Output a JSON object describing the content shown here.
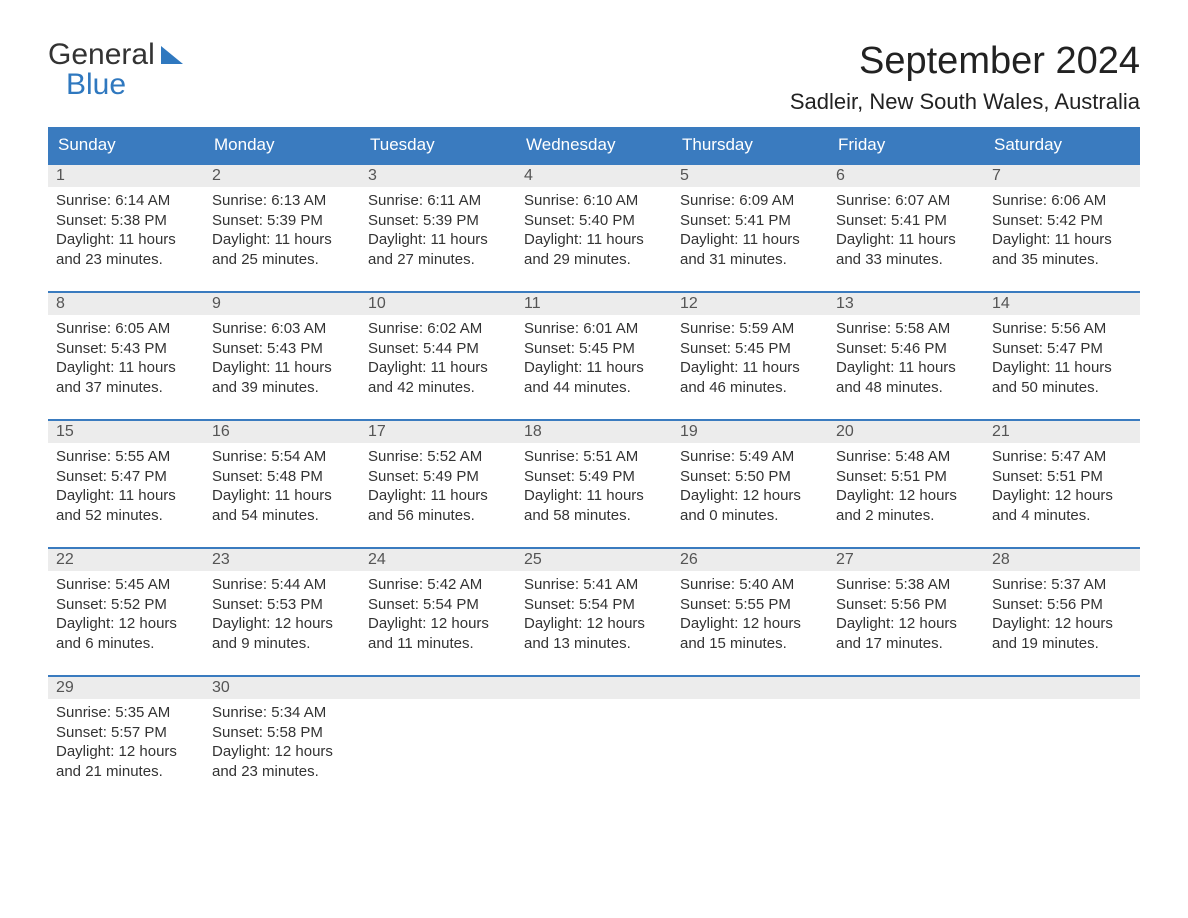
{
  "logo": {
    "line1": "General",
    "line2": "Blue"
  },
  "title": "September 2024",
  "location": "Sadleir, New South Wales, Australia",
  "colors": {
    "header_bg": "#3a7bbf",
    "header_text": "#ffffff",
    "row_accent": "#3a7bbf",
    "num_bg": "#ececec",
    "text": "#333333",
    "page_bg": "#ffffff"
  },
  "typography": {
    "title_fontsize": 38,
    "location_fontsize": 22,
    "dow_fontsize": 17,
    "daynum_fontsize": 16,
    "body_fontsize": 15
  },
  "layout": {
    "columns": 7,
    "rows": 5
  },
  "days_of_week": [
    "Sunday",
    "Monday",
    "Tuesday",
    "Wednesday",
    "Thursday",
    "Friday",
    "Saturday"
  ],
  "weeks": [
    [
      {
        "num": "1",
        "sunrise": "Sunrise: 6:14 AM",
        "sunset": "Sunset: 5:38 PM",
        "dl1": "Daylight: 11 hours",
        "dl2": "and 23 minutes."
      },
      {
        "num": "2",
        "sunrise": "Sunrise: 6:13 AM",
        "sunset": "Sunset: 5:39 PM",
        "dl1": "Daylight: 11 hours",
        "dl2": "and 25 minutes."
      },
      {
        "num": "3",
        "sunrise": "Sunrise: 6:11 AM",
        "sunset": "Sunset: 5:39 PM",
        "dl1": "Daylight: 11 hours",
        "dl2": "and 27 minutes."
      },
      {
        "num": "4",
        "sunrise": "Sunrise: 6:10 AM",
        "sunset": "Sunset: 5:40 PM",
        "dl1": "Daylight: 11 hours",
        "dl2": "and 29 minutes."
      },
      {
        "num": "5",
        "sunrise": "Sunrise: 6:09 AM",
        "sunset": "Sunset: 5:41 PM",
        "dl1": "Daylight: 11 hours",
        "dl2": "and 31 minutes."
      },
      {
        "num": "6",
        "sunrise": "Sunrise: 6:07 AM",
        "sunset": "Sunset: 5:41 PM",
        "dl1": "Daylight: 11 hours",
        "dl2": "and 33 minutes."
      },
      {
        "num": "7",
        "sunrise": "Sunrise: 6:06 AM",
        "sunset": "Sunset: 5:42 PM",
        "dl1": "Daylight: 11 hours",
        "dl2": "and 35 minutes."
      }
    ],
    [
      {
        "num": "8",
        "sunrise": "Sunrise: 6:05 AM",
        "sunset": "Sunset: 5:43 PM",
        "dl1": "Daylight: 11 hours",
        "dl2": "and 37 minutes."
      },
      {
        "num": "9",
        "sunrise": "Sunrise: 6:03 AM",
        "sunset": "Sunset: 5:43 PM",
        "dl1": "Daylight: 11 hours",
        "dl2": "and 39 minutes."
      },
      {
        "num": "10",
        "sunrise": "Sunrise: 6:02 AM",
        "sunset": "Sunset: 5:44 PM",
        "dl1": "Daylight: 11 hours",
        "dl2": "and 42 minutes."
      },
      {
        "num": "11",
        "sunrise": "Sunrise: 6:01 AM",
        "sunset": "Sunset: 5:45 PM",
        "dl1": "Daylight: 11 hours",
        "dl2": "and 44 minutes."
      },
      {
        "num": "12",
        "sunrise": "Sunrise: 5:59 AM",
        "sunset": "Sunset: 5:45 PM",
        "dl1": "Daylight: 11 hours",
        "dl2": "and 46 minutes."
      },
      {
        "num": "13",
        "sunrise": "Sunrise: 5:58 AM",
        "sunset": "Sunset: 5:46 PM",
        "dl1": "Daylight: 11 hours",
        "dl2": "and 48 minutes."
      },
      {
        "num": "14",
        "sunrise": "Sunrise: 5:56 AM",
        "sunset": "Sunset: 5:47 PM",
        "dl1": "Daylight: 11 hours",
        "dl2": "and 50 minutes."
      }
    ],
    [
      {
        "num": "15",
        "sunrise": "Sunrise: 5:55 AM",
        "sunset": "Sunset: 5:47 PM",
        "dl1": "Daylight: 11 hours",
        "dl2": "and 52 minutes."
      },
      {
        "num": "16",
        "sunrise": "Sunrise: 5:54 AM",
        "sunset": "Sunset: 5:48 PM",
        "dl1": "Daylight: 11 hours",
        "dl2": "and 54 minutes."
      },
      {
        "num": "17",
        "sunrise": "Sunrise: 5:52 AM",
        "sunset": "Sunset: 5:49 PM",
        "dl1": "Daylight: 11 hours",
        "dl2": "and 56 minutes."
      },
      {
        "num": "18",
        "sunrise": "Sunrise: 5:51 AM",
        "sunset": "Sunset: 5:49 PM",
        "dl1": "Daylight: 11 hours",
        "dl2": "and 58 minutes."
      },
      {
        "num": "19",
        "sunrise": "Sunrise: 5:49 AM",
        "sunset": "Sunset: 5:50 PM",
        "dl1": "Daylight: 12 hours",
        "dl2": "and 0 minutes."
      },
      {
        "num": "20",
        "sunrise": "Sunrise: 5:48 AM",
        "sunset": "Sunset: 5:51 PM",
        "dl1": "Daylight: 12 hours",
        "dl2": "and 2 minutes."
      },
      {
        "num": "21",
        "sunrise": "Sunrise: 5:47 AM",
        "sunset": "Sunset: 5:51 PM",
        "dl1": "Daylight: 12 hours",
        "dl2": "and 4 minutes."
      }
    ],
    [
      {
        "num": "22",
        "sunrise": "Sunrise: 5:45 AM",
        "sunset": "Sunset: 5:52 PM",
        "dl1": "Daylight: 12 hours",
        "dl2": "and 6 minutes."
      },
      {
        "num": "23",
        "sunrise": "Sunrise: 5:44 AM",
        "sunset": "Sunset: 5:53 PM",
        "dl1": "Daylight: 12 hours",
        "dl2": "and 9 minutes."
      },
      {
        "num": "24",
        "sunrise": "Sunrise: 5:42 AM",
        "sunset": "Sunset: 5:54 PM",
        "dl1": "Daylight: 12 hours",
        "dl2": "and 11 minutes."
      },
      {
        "num": "25",
        "sunrise": "Sunrise: 5:41 AM",
        "sunset": "Sunset: 5:54 PM",
        "dl1": "Daylight: 12 hours",
        "dl2": "and 13 minutes."
      },
      {
        "num": "26",
        "sunrise": "Sunrise: 5:40 AM",
        "sunset": "Sunset: 5:55 PM",
        "dl1": "Daylight: 12 hours",
        "dl2": "and 15 minutes."
      },
      {
        "num": "27",
        "sunrise": "Sunrise: 5:38 AM",
        "sunset": "Sunset: 5:56 PM",
        "dl1": "Daylight: 12 hours",
        "dl2": "and 17 minutes."
      },
      {
        "num": "28",
        "sunrise": "Sunrise: 5:37 AM",
        "sunset": "Sunset: 5:56 PM",
        "dl1": "Daylight: 12 hours",
        "dl2": "and 19 minutes."
      }
    ],
    [
      {
        "num": "29",
        "sunrise": "Sunrise: 5:35 AM",
        "sunset": "Sunset: 5:57 PM",
        "dl1": "Daylight: 12 hours",
        "dl2": "and 21 minutes."
      },
      {
        "num": "30",
        "sunrise": "Sunrise: 5:34 AM",
        "sunset": "Sunset: 5:58 PM",
        "dl1": "Daylight: 12 hours",
        "dl2": "and 23 minutes."
      },
      {
        "empty": true
      },
      {
        "empty": true
      },
      {
        "empty": true
      },
      {
        "empty": true
      },
      {
        "empty": true
      }
    ]
  ]
}
